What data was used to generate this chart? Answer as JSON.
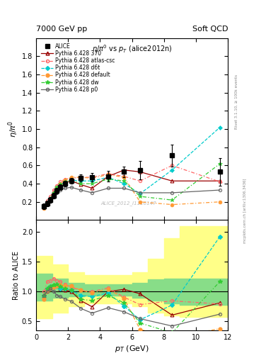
{
  "title_top": "7000 GeV pp",
  "title_top_right": "Soft QCD",
  "plot_title": "$\\eta/\\pi^0$ vs $p_T$ (alice2012n)",
  "ylabel_main": "$\\eta/\\pi^0$",
  "ylabel_ratio": "Ratio to ALICE",
  "xlabel": "$p_T$ (GeV)",
  "watermark": "ALICE_2012_I1116147",
  "right_label_top": "Rivet 3.1.10, ≥ 100k events",
  "right_label_bottom": "mcplots.cern.ch [arXiv:1306.3436]",
  "alice_x": [
    0.5,
    0.7,
    0.9,
    1.1,
    1.3,
    1.5,
    1.8,
    2.2,
    2.8,
    3.5,
    4.5,
    5.5,
    6.5,
    8.5,
    11.5
  ],
  "alice_y": [
    0.15,
    0.18,
    0.22,
    0.27,
    0.32,
    0.36,
    0.4,
    0.43,
    0.46,
    0.47,
    0.48,
    0.53,
    0.55,
    0.71,
    0.53
  ],
  "alice_yerr": [
    0.03,
    0.03,
    0.03,
    0.03,
    0.03,
    0.03,
    0.03,
    0.03,
    0.04,
    0.05,
    0.06,
    0.06,
    0.1,
    0.12,
    0.15
  ],
  "p370_x": [
    0.5,
    0.7,
    0.9,
    1.1,
    1.3,
    1.5,
    1.8,
    2.2,
    2.8,
    3.5,
    4.5,
    5.5,
    6.5,
    8.5,
    11.5
  ],
  "p370_y": [
    0.14,
    0.19,
    0.24,
    0.3,
    0.35,
    0.38,
    0.41,
    0.43,
    0.39,
    0.35,
    0.48,
    0.55,
    0.53,
    0.43,
    0.43
  ],
  "patlas_x": [
    0.5,
    0.7,
    0.9,
    1.1,
    1.3,
    1.5,
    1.8,
    2.2,
    2.8,
    3.5,
    4.5,
    5.5,
    6.5,
    8.5,
    11.5
  ],
  "patlas_y": [
    0.15,
    0.21,
    0.26,
    0.33,
    0.38,
    0.42,
    0.45,
    0.46,
    0.47,
    0.47,
    0.51,
    0.48,
    0.43,
    0.6,
    0.42
  ],
  "pd6t_x": [
    0.5,
    0.7,
    0.9,
    1.1,
    1.3,
    1.5,
    1.8,
    2.2,
    2.8,
    3.5,
    4.5,
    5.5,
    6.5,
    8.5,
    11.5
  ],
  "pd6t_y": [
    0.14,
    0.19,
    0.24,
    0.29,
    0.35,
    0.38,
    0.42,
    0.44,
    0.43,
    0.43,
    0.47,
    0.4,
    0.29,
    0.55,
    1.02
  ],
  "pdefault_x": [
    0.5,
    0.7,
    0.9,
    1.1,
    1.3,
    1.5,
    1.8,
    2.2,
    2.8,
    3.5,
    4.5,
    5.5,
    6.5,
    8.5,
    11.5
  ],
  "pdefault_y": [
    0.13,
    0.18,
    0.23,
    0.29,
    0.35,
    0.4,
    0.44,
    0.47,
    0.47,
    0.46,
    0.5,
    0.47,
    0.2,
    0.17,
    0.2
  ],
  "pdw_x": [
    0.5,
    0.7,
    0.9,
    1.1,
    1.3,
    1.5,
    1.8,
    2.2,
    2.8,
    3.5,
    4.5,
    5.5,
    6.5,
    8.5,
    11.5
  ],
  "pdw_y": [
    0.14,
    0.19,
    0.24,
    0.3,
    0.36,
    0.39,
    0.42,
    0.44,
    0.4,
    0.4,
    0.45,
    0.43,
    0.26,
    0.22,
    0.62
  ],
  "pp0_x": [
    0.5,
    0.7,
    0.9,
    1.1,
    1.3,
    1.5,
    1.8,
    2.2,
    2.8,
    3.5,
    4.5,
    5.5,
    6.5,
    8.5,
    11.5
  ],
  "pp0_y": [
    0.14,
    0.18,
    0.23,
    0.27,
    0.3,
    0.33,
    0.35,
    0.36,
    0.33,
    0.3,
    0.35,
    0.35,
    0.3,
    0.3,
    0.33
  ],
  "band_x_edges": [
    0,
    1,
    2,
    3,
    4,
    5,
    6,
    7,
    8,
    9,
    10,
    11,
    12
  ],
  "band_green_low": [
    0.85,
    0.9,
    0.92,
    0.93,
    0.93,
    0.93,
    0.9,
    0.85,
    0.8,
    0.78,
    0.78,
    0.78
  ],
  "band_green_high": [
    1.3,
    1.22,
    1.15,
    1.12,
    1.12,
    1.12,
    1.15,
    1.2,
    1.22,
    1.22,
    1.22,
    1.22
  ],
  "band_yellow_low": [
    0.55,
    0.65,
    0.75,
    0.8,
    0.8,
    0.8,
    0.75,
    0.65,
    0.6,
    0.57,
    0.57,
    0.57
  ],
  "band_yellow_high": [
    1.6,
    1.45,
    1.32,
    1.28,
    1.28,
    1.28,
    1.32,
    1.55,
    1.9,
    2.1,
    2.1,
    2.1
  ],
  "color_alice": "#000000",
  "color_p370": "#990000",
  "color_patlas": "#ff6666",
  "color_pd6t": "#00cccc",
  "color_pdefault": "#ff9933",
  "color_pdw": "#33cc33",
  "color_pp0": "#666666",
  "main_ylim": [
    0.0,
    2.0
  ],
  "main_yticks": [
    0.2,
    0.4,
    0.6,
    0.8,
    1.0,
    1.2,
    1.4,
    1.6,
    1.8
  ],
  "ratio_ylim": [
    0.35,
    2.2
  ],
  "ratio_yticks": [
    0.5,
    1.0,
    1.5,
    2.0
  ],
  "xlim": [
    0,
    12
  ],
  "xticks": [
    0,
    2,
    4,
    6,
    8,
    10,
    12
  ]
}
